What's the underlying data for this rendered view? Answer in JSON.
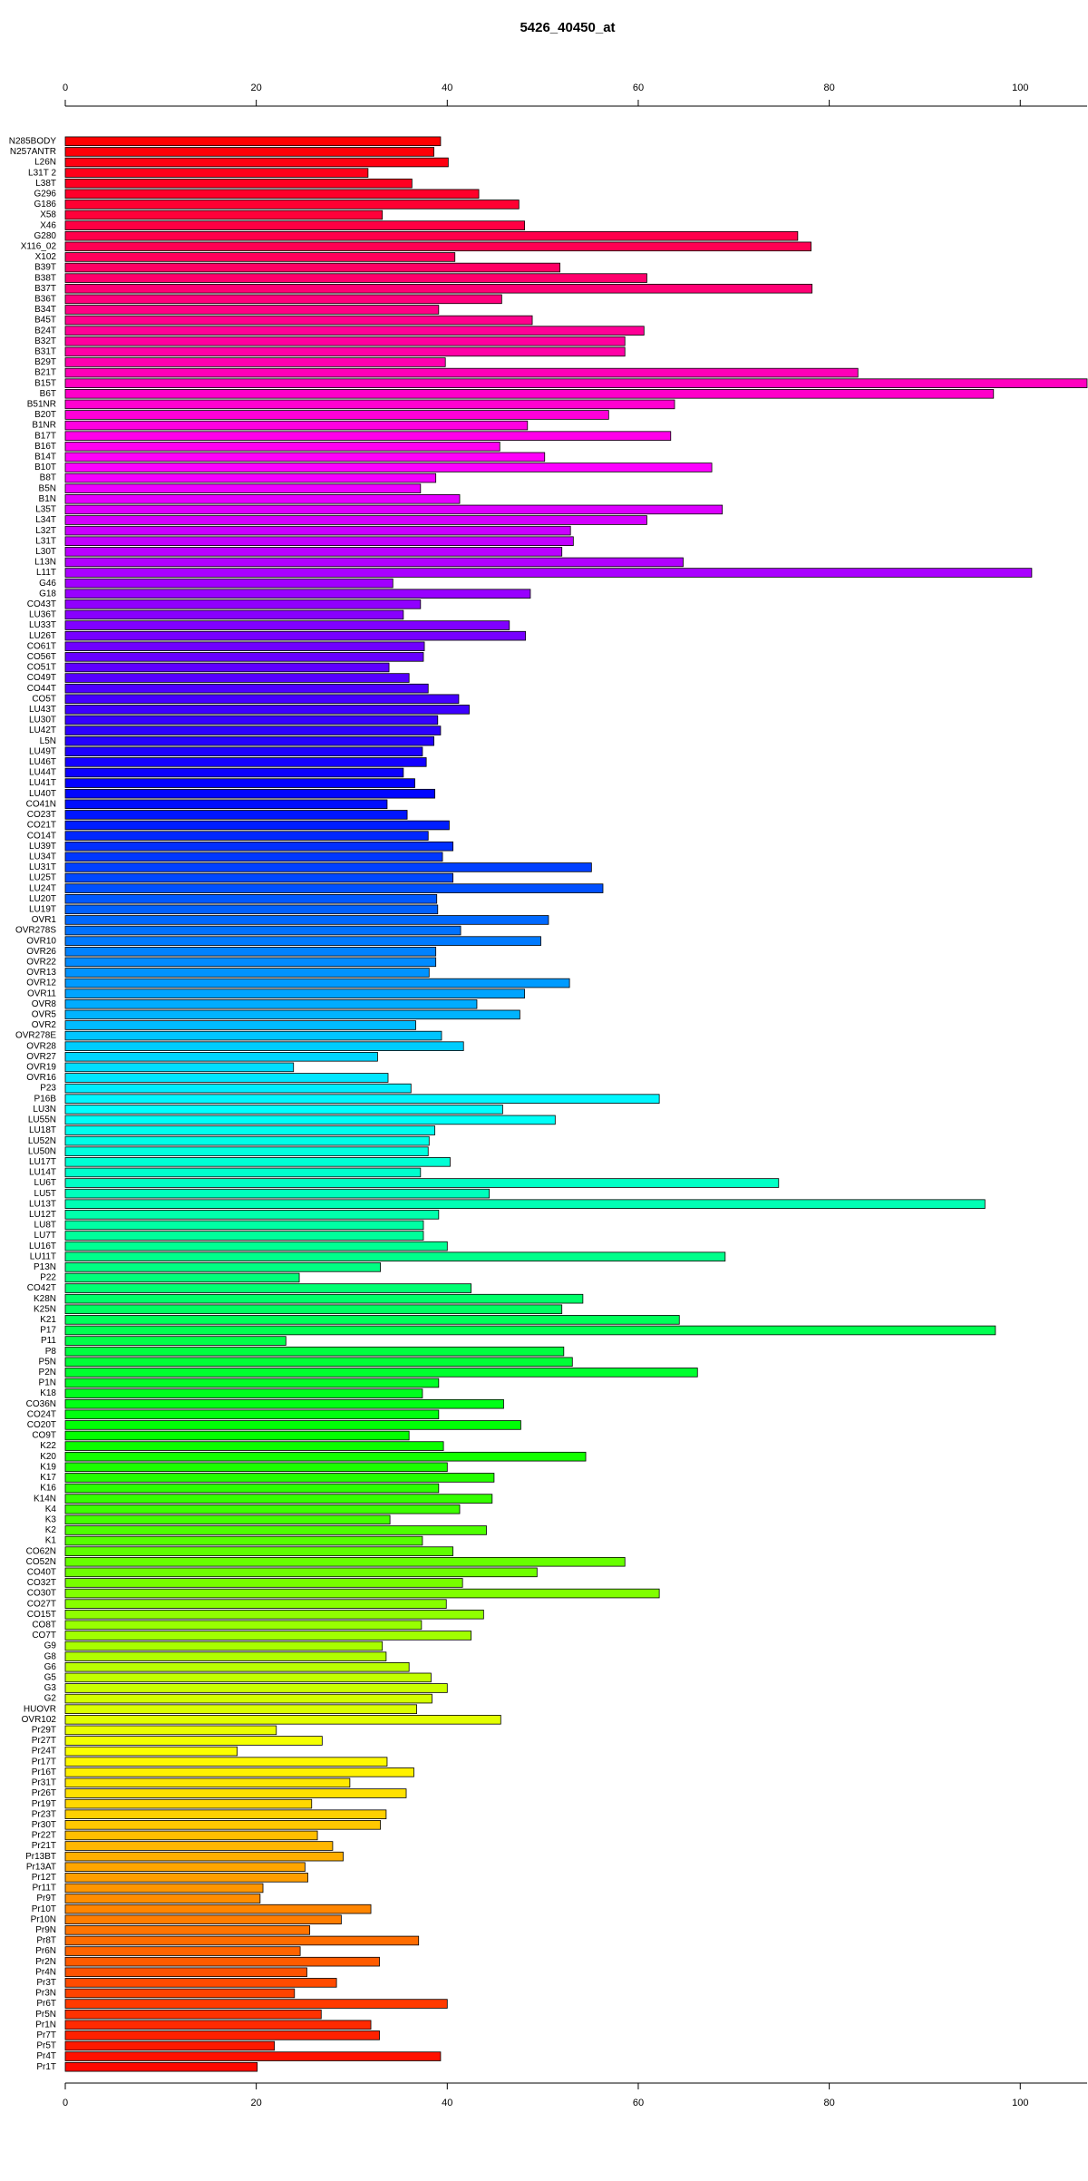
{
  "chart_data": {
    "type": "barh",
    "title": "5426_40450_at",
    "palette": "rainbow",
    "categories": [
      "N285BODY",
      "N257ANTR",
      "L26N",
      "L31T 2",
      "L38T",
      "G296",
      "G186",
      "X58",
      "X46",
      "G280",
      "X116_02",
      "X102",
      "B39T",
      "B38T",
      "B37T",
      "B36T",
      "B34T",
      "B45T",
      "B24T",
      "B32T",
      "B31T",
      "B29T",
      "B21T",
      "B15T",
      "B6T",
      "B51NR",
      "B20T",
      "B1NR",
      "B17T",
      "B16T",
      "B14T",
      "B10T",
      "B8T",
      "B5N",
      "B1N",
      "L35T",
      "L34T",
      "L32T",
      "L31T",
      "L30T",
      "L13N",
      "L11T",
      "G46",
      "G18",
      "CO43T",
      "LU36T",
      "LU33T",
      "LU26T",
      "CO61T",
      "CO56T",
      "CO51T",
      "CO49T",
      "CO44T",
      "CO5T",
      "LU43T",
      "LU30T",
      "LU42T",
      "L5N",
      "LU49T",
      "LU46T",
      "LU44T",
      "LU41T",
      "LU40T",
      "CO41N",
      "CO23T",
      "CO21T",
      "CO14T",
      "LU39T",
      "LU34T",
      "LU31T",
      "LU25T",
      "LU24T",
      "LU20T",
      "LU19T",
      "OVR1",
      "OVR278S",
      "OVR10",
      "OVR26",
      "OVR22",
      "OVR13",
      "OVR12",
      "OVR11",
      "OVR8",
      "OVR5",
      "OVR2",
      "OVR278E",
      "OVR28",
      "OVR27",
      "OVR19",
      "OVR16",
      "P23",
      "P16B",
      "LU3N",
      "LU55N",
      "LU18T",
      "LU52N",
      "LU50N",
      "LU17T",
      "LU14T",
      "LU6T",
      "LU5T",
      "LU13T",
      "LU12T",
      "LU8T",
      "LU7T",
      "LU16T",
      "LU11T",
      "P13N",
      "P22",
      "CO42T",
      "K28N",
      "K25N",
      "K21",
      "P17",
      "P11",
      "P8",
      "P5N",
      "P2N",
      "P1N",
      "K18",
      "CO36N",
      "CO24T",
      "CO20T",
      "CO9T",
      "K22",
      "K20",
      "K19",
      "K17",
      "K16",
      "K14N",
      "K4",
      "K3",
      "K2",
      "K1",
      "CO62N",
      "CO52N",
      "CO40T",
      "CO32T",
      "CO30T",
      "CO27T",
      "CO15T",
      "CO8T",
      "CO7T",
      "G9",
      "G8",
      "G6",
      "G5",
      "G3",
      "G2",
      "HUOVR",
      "OVR102",
      "Pr29T",
      "Pr27T",
      "Pr24T",
      "Pr17T",
      "Pr16T",
      "Pr31T",
      "Pr26T",
      "Pr19T",
      "Pr23T",
      "Pr30T",
      "Pr22T",
      "Pr21T",
      "Pr13BT",
      "Pr13AT",
      "Pr12T",
      "Pr11T",
      "Pr9T",
      "Pr10T",
      "Pr10N",
      "Pr9N",
      "Pr8T",
      "Pr6N",
      "Pr2N",
      "Pr4N",
      "Pr3T",
      "Pr3N",
      "Pr6T",
      "Pr5N",
      "Pr1N",
      "Pr7T",
      "Pr5T",
      "Pr4T",
      "Pr1T"
    ],
    "values": [
      39.3,
      38.6,
      40.1,
      31.7,
      36.3,
      43.3,
      47.5,
      33.2,
      48.1,
      76.7,
      78.1,
      40.8,
      51.8,
      60.9,
      78.2,
      45.7,
      39.1,
      48.9,
      60.6,
      58.6,
      58.6,
      39.8,
      83.0,
      107,
      97.2,
      63.8,
      56.9,
      48.4,
      63.4,
      45.5,
      50.2,
      67.7,
      38.8,
      37.2,
      41.3,
      68.8,
      60.9,
      52.9,
      53.2,
      52.0,
      64.7,
      101.2,
      34.3,
      48.7,
      37.2,
      35.4,
      46.5,
      48.2,
      37.6,
      37.5,
      33.9,
      36.0,
      38.0,
      41.2,
      42.3,
      39.0,
      39.3,
      38.6,
      37.4,
      37.8,
      35.4,
      36.6,
      38.7,
      33.7,
      35.8,
      40.2,
      38.0,
      40.6,
      39.5,
      55.1,
      40.6,
      56.3,
      38.9,
      39.0,
      50.6,
      41.4,
      49.8,
      38.8,
      38.8,
      38.1,
      52.8,
      48.1,
      43.1,
      47.6,
      36.7,
      39.4,
      41.7,
      32.7,
      23.9,
      33.8,
      36.2,
      62.2,
      45.8,
      51.3,
      38.7,
      38.1,
      38.0,
      40.3,
      37.2,
      74.7,
      44.4,
      96.3,
      39.1,
      37.5,
      37.5,
      40.0,
      69.1,
      33.0,
      24.5,
      42.5,
      54.2,
      52.0,
      64.3,
      97.4,
      23.1,
      52.2,
      53.1,
      66.2,
      39.1,
      37.4,
      45.9,
      39.1,
      47.7,
      36.0,
      39.6,
      54.5,
      40.0,
      44.9,
      39.1,
      44.7,
      41.3,
      34.0,
      44.1,
      37.4,
      40.6,
      58.6,
      49.4,
      41.6,
      62.2,
      39.9,
      43.8,
      37.3,
      42.5,
      33.2,
      33.6,
      36.0,
      38.3,
      40.0,
      38.4,
      36.8,
      45.6,
      22.1,
      26.9,
      18.0,
      33.7,
      36.5,
      29.8,
      35.7,
      25.8,
      33.6,
      33.0,
      26.4,
      28.0,
      29.1,
      25.1,
      25.4,
      20.7,
      20.4,
      32.0,
      28.9,
      25.6,
      37.0,
      24.6,
      32.9,
      25.3,
      28.4,
      24.0,
      40.0,
      26.8,
      32.0,
      32.9,
      21.9,
      39.3,
      20.1
    ],
    "xlim": [
      0,
      107
    ],
    "xticks": [
      0,
      20,
      40,
      60,
      80,
      100
    ]
  }
}
